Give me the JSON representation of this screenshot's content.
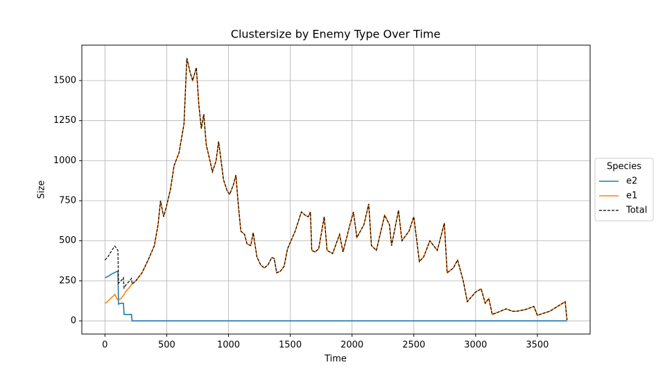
{
  "chart_data": {
    "type": "line",
    "title": "Clustersize by Enemy Type Over Time",
    "xlabel": "Time",
    "ylabel": "Size",
    "legend_title": "Species",
    "legend_position": "right",
    "grid": true,
    "xlim": [
      -187,
      3927
    ],
    "ylim": [
      -82,
      1721
    ],
    "xticks": [
      0,
      500,
      1000,
      1500,
      2000,
      2500,
      3000,
      3500
    ],
    "yticks": [
      0,
      250,
      500,
      750,
      1000,
      1250,
      1500
    ],
    "x": [
      0,
      20,
      40,
      60,
      80,
      100,
      105,
      110,
      130,
      150,
      155,
      170,
      200,
      215,
      220,
      250,
      300,
      350,
      400,
      430,
      450,
      475,
      500,
      530,
      560,
      600,
      640,
      663,
      690,
      710,
      740,
      760,
      780,
      800,
      820,
      850,
      870,
      900,
      920,
      940,
      960,
      990,
      1010,
      1040,
      1060,
      1080,
      1100,
      1130,
      1150,
      1180,
      1200,
      1230,
      1260,
      1290,
      1320,
      1350,
      1370,
      1390,
      1420,
      1450,
      1478,
      1506,
      1540,
      1590,
      1620,
      1646,
      1663,
      1674,
      1700,
      1730,
      1775,
      1798,
      1843,
      1871,
      1899,
      1927,
      1983,
      2011,
      2039,
      2096,
      2135,
      2157,
      2197,
      2264,
      2303,
      2320,
      2376,
      2404,
      2461,
      2500,
      2545,
      2580,
      2630,
      2690,
      2747,
      2770,
      2820,
      2854,
      2900,
      2933,
      3000,
      3045,
      3078,
      3107,
      3135,
      3200,
      3247,
      3300,
      3331,
      3400,
      3472,
      3500,
      3600,
      3725,
      3740
    ],
    "series": [
      {
        "name": "e2",
        "color": "#1f77b4",
        "linestyle": "solid",
        "values": [
          270,
          275,
          285,
          295,
          302,
          310,
          310,
          105,
          110,
          110,
          40,
          40,
          40,
          40,
          0,
          0,
          0,
          0,
          0,
          0,
          0,
          0,
          0,
          0,
          0,
          0,
          0,
          0,
          0,
          0,
          0,
          0,
          0,
          0,
          0,
          0,
          0,
          0,
          0,
          0,
          0,
          0,
          0,
          0,
          0,
          0,
          0,
          0,
          0,
          0,
          0,
          0,
          0,
          0,
          0,
          0,
          0,
          0,
          0,
          0,
          0,
          0,
          0,
          0,
          0,
          0,
          0,
          0,
          0,
          0,
          0,
          0,
          0,
          0,
          0,
          0,
          0,
          0,
          0,
          0,
          0,
          0,
          0,
          0,
          0,
          0,
          0,
          0,
          0,
          0,
          0,
          0,
          0,
          0,
          0,
          0,
          0,
          0,
          0,
          0,
          0,
          0,
          0,
          0,
          0,
          0,
          0,
          0,
          0,
          0,
          0,
          0,
          0,
          0,
          0
        ]
      },
      {
        "name": "e1",
        "color": "#ff7f0e",
        "linestyle": "solid",
        "values": [
          110,
          120,
          135,
          150,
          165,
          135,
          130,
          130,
          140,
          160,
          165,
          185,
          210,
          225,
          230,
          250,
          300,
          380,
          470,
          600,
          750,
          650,
          720,
          820,
          970,
          1050,
          1230,
          1640,
          1550,
          1500,
          1580,
          1350,
          1200,
          1290,
          1100,
          1000,
          930,
          1000,
          1120,
          1000,
          880,
          810,
          790,
          850,
          910,
          720,
          560,
          540,
          480,
          470,
          550,
          400,
          350,
          330,
          350,
          395,
          390,
          300,
          310,
          340,
          450,
          500,
          560,
          680,
          660,
          650,
          680,
          440,
          430,
          450,
          650,
          440,
          420,
          480,
          540,
          430,
          600,
          680,
          520,
          600,
          730,
          470,
          440,
          660,
          600,
          470,
          690,
          500,
          560,
          650,
          370,
          400,
          500,
          440,
          610,
          300,
          330,
          380,
          250,
          120,
          180,
          200,
          110,
          140,
          40,
          60,
          75,
          60,
          60,
          70,
          90,
          35,
          60,
          120,
          5
        ]
      },
      {
        "name": "Total",
        "color": "#000000",
        "linestyle": "dashed",
        "values": [
          380,
          395,
          420,
          445,
          467,
          445,
          440,
          235,
          250,
          270,
          205,
          225,
          250,
          265,
          230,
          250,
          300,
          380,
          470,
          600,
          750,
          650,
          720,
          820,
          970,
          1050,
          1230,
          1640,
          1550,
          1500,
          1580,
          1350,
          1200,
          1290,
          1100,
          1000,
          930,
          1000,
          1120,
          1000,
          880,
          810,
          790,
          850,
          910,
          720,
          560,
          540,
          480,
          470,
          550,
          400,
          350,
          330,
          350,
          395,
          390,
          300,
          310,
          340,
          450,
          500,
          560,
          680,
          660,
          650,
          680,
          440,
          430,
          450,
          650,
          440,
          420,
          480,
          540,
          430,
          600,
          680,
          520,
          600,
          730,
          470,
          440,
          660,
          600,
          470,
          690,
          500,
          560,
          650,
          370,
          400,
          500,
          440,
          610,
          300,
          330,
          380,
          250,
          120,
          180,
          200,
          110,
          140,
          40,
          60,
          75,
          60,
          60,
          70,
          90,
          35,
          60,
          120,
          5
        ]
      }
    ]
  }
}
